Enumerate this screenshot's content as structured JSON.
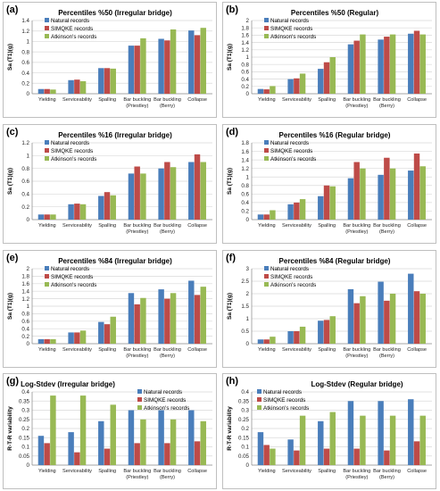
{
  "colors": {
    "natural": "#4a7ebb",
    "simqke": "#be4b48",
    "atkinson": "#98b954",
    "grid": "#d9d9d9",
    "axis": "#868686"
  },
  "chart_data": [
    {
      "panel_label": "(a)",
      "type": "bar",
      "title": "Percentiles  %50  (Irregular bridge)",
      "ylabel": "Sa (T1)(g)",
      "xlabel": "",
      "ylim": [
        0,
        1.4
      ],
      "yticks": [
        "0",
        "0.2",
        "0.4",
        "0.6",
        "0.8",
        "1",
        "1.2",
        "1.4"
      ],
      "legend_position": "top-left",
      "categories": [
        "Yielding",
        "Serviceability",
        "Spalling",
        "Bar buckling\n(Priestley)",
        "Bar buckling\n(Berry)",
        "Collapse"
      ],
      "series": [
        {
          "name": "Natural records",
          "values": [
            0.09,
            0.26,
            0.49,
            0.92,
            1.05,
            1.21
          ]
        },
        {
          "name": "SIMQKE records",
          "values": [
            0.09,
            0.27,
            0.49,
            0.92,
            1.02,
            1.12
          ]
        },
        {
          "name": "Atkinson's records",
          "values": [
            0.08,
            0.24,
            0.48,
            1.06,
            1.23,
            1.26
          ]
        }
      ]
    },
    {
      "panel_label": "(b)",
      "type": "bar",
      "title": "Percentiles  %50  (Regular)",
      "ylabel": "Sa (T1)(g)",
      "xlabel": "",
      "ylim": [
        0,
        2
      ],
      "yticks": [
        "0",
        "0.2",
        "0.4",
        "0.6",
        "0.8",
        "1",
        "1.2",
        "1.4",
        "1.6",
        "1.8",
        "2"
      ],
      "legend_position": "top-left",
      "categories": [
        "Yielding",
        "Serviceability",
        "Spalling",
        "Bar buckling\n(Priestley)",
        "Bar buckling\n(Berry)",
        "Collapse"
      ],
      "series": [
        {
          "name": "Natural records",
          "values": [
            0.13,
            0.4,
            0.68,
            1.35,
            1.48,
            1.64
          ]
        },
        {
          "name": "SIMQKE records",
          "values": [
            0.12,
            0.42,
            0.86,
            1.45,
            1.56,
            1.72
          ]
        },
        {
          "name": "Atkinson's records",
          "values": [
            0.21,
            0.55,
            1.0,
            1.62,
            1.62,
            1.62
          ]
        }
      ]
    },
    {
      "panel_label": "(c)",
      "type": "bar",
      "title": "Percentiles  %16  (Irregular bridge)",
      "ylabel": "Sa (T1)(g)",
      "xlabel": "",
      "ylim": [
        0,
        1.2
      ],
      "yticks": [
        "0",
        "0.2",
        "0.4",
        "0.6",
        "0.8",
        "1",
        "1.2"
      ],
      "legend_position": "top-left",
      "categories": [
        "Yielding",
        "Serviceability",
        "Spalling",
        "Bar buckling\n(Priestley)",
        "Bar buckling\n(Berry)",
        "Collapse"
      ],
      "series": [
        {
          "name": "Natural records",
          "values": [
            0.08,
            0.24,
            0.37,
            0.72,
            0.8,
            0.9
          ]
        },
        {
          "name": "SIMQKE records",
          "values": [
            0.08,
            0.25,
            0.43,
            0.83,
            0.9,
            1.02
          ]
        },
        {
          "name": "Atkinson's records",
          "values": [
            0.08,
            0.24,
            0.38,
            0.72,
            0.82,
            0.9
          ]
        }
      ]
    },
    {
      "panel_label": "(d)",
      "type": "bar",
      "title": "Percentiles  %16  (Regular bridge)",
      "ylabel": "Sa (T1)(g)",
      "xlabel": "",
      "ylim": [
        0,
        1.8
      ],
      "yticks": [
        "0",
        "0.2",
        "0.4",
        "0.6",
        "0.8",
        "1",
        "1.2",
        "1.4",
        "1.6",
        "1.8"
      ],
      "legend_position": "top-left",
      "categories": [
        "Yielding",
        "Serviceability",
        "Spalling",
        "Bar buckling\n(Priestley)",
        "Bar buckling\n(Berry)",
        "Collapse"
      ],
      "series": [
        {
          "name": "Natural records",
          "values": [
            0.12,
            0.36,
            0.55,
            0.97,
            1.05,
            1.15
          ]
        },
        {
          "name": "SIMQKE records",
          "values": [
            0.12,
            0.4,
            0.8,
            1.35,
            1.45,
            1.55
          ]
        },
        {
          "name": "Atkinson's records",
          "values": [
            0.22,
            0.48,
            0.78,
            1.2,
            1.2,
            1.25
          ]
        }
      ]
    },
    {
      "panel_label": "(e)",
      "type": "bar",
      "title": "Percentiles  %84  (Irregular bridge)",
      "ylabel": "Sa (T1)(g)",
      "xlabel": "",
      "ylim": [
        0,
        2
      ],
      "yticks": [
        "0",
        "0.2",
        "0.4",
        "0.6",
        "0.8",
        "1",
        "1.2",
        "1.4",
        "1.6",
        "1.8",
        "2"
      ],
      "legend_position": "top-left",
      "categories": [
        "Yielding",
        "Serviceability",
        "Spalling",
        "Bar buckling\n(Priestley)",
        "Bar buckling\n(Berry)",
        "Collapse"
      ],
      "series": [
        {
          "name": "Natural records",
          "values": [
            0.12,
            0.3,
            0.58,
            1.35,
            1.45,
            1.68
          ]
        },
        {
          "name": "SIMQKE records",
          "values": [
            0.12,
            0.3,
            0.52,
            1.05,
            1.2,
            1.3
          ]
        },
        {
          "name": "Atkinson's records",
          "values": [
            0.12,
            0.35,
            0.72,
            1.22,
            1.35,
            1.52
          ]
        }
      ]
    },
    {
      "panel_label": "(f)",
      "type": "bar",
      "title": "Percentiles  %84  (Regular bridge)",
      "ylabel": "Sa (T1)(g)",
      "xlabel": "",
      "ylim": [
        0,
        3
      ],
      "yticks": [
        "0",
        "0.5",
        "1",
        "1.5",
        "2",
        "2.5",
        "3"
      ],
      "legend_position": "top-left",
      "categories": [
        "Yielding",
        "Serviceability",
        "Spalling",
        "Bar buckling\n(Priestley)",
        "Bar buckling\n(Berry)",
        "Collapse"
      ],
      "series": [
        {
          "name": "Natural records",
          "values": [
            0.17,
            0.5,
            0.92,
            2.18,
            2.48,
            2.8
          ]
        },
        {
          "name": "SIMQKE records",
          "values": [
            0.17,
            0.5,
            0.95,
            1.62,
            1.72,
            2.1
          ]
        },
        {
          "name": "Atkinson's records",
          "values": [
            0.28,
            0.68,
            1.1,
            1.9,
            2.0,
            2.0
          ]
        }
      ]
    },
    {
      "panel_label": "(g)",
      "type": "bar",
      "title": "Log-Stdev  (Irregular bridge)",
      "ylabel": "R-T-R variability",
      "xlabel": "",
      "ylim": [
        0,
        0.4
      ],
      "yticks": [
        "0",
        "0.05",
        "0.1",
        "0.15",
        "0.2",
        "0.25",
        "0.3",
        "0.35",
        "0.4"
      ],
      "legend_position": "top-right",
      "categories": [
        "Yielding",
        "Serviceability",
        "Spalling",
        "Bar buckling\n(Priestley)",
        "Bar buckling\n(Berry)",
        "Collapse"
      ],
      "series": [
        {
          "name": "Natural records",
          "values": [
            0.16,
            0.18,
            0.24,
            0.3,
            0.3,
            0.3
          ]
        },
        {
          "name": "SIMQKE records",
          "values": [
            0.12,
            0.07,
            0.09,
            0.12,
            0.12,
            0.13
          ]
        },
        {
          "name": "Atkinson's records",
          "values": [
            0.38,
            0.38,
            0.33,
            0.25,
            0.25,
            0.24
          ]
        }
      ]
    },
    {
      "panel_label": "(h)",
      "type": "bar",
      "title": "Log-Stdev  (Regular bridge)",
      "ylabel": "R-T-R variability",
      "xlabel": "",
      "ylim": [
        0,
        0.4
      ],
      "yticks": [
        "0",
        "0.05",
        "0.1",
        "0.15",
        "0.2",
        "0.25",
        "0.3",
        "0.35",
        "0.4"
      ],
      "legend_position": "top-left",
      "categories": [
        "Yielding",
        "Serviceability",
        "Spalling",
        "Bar buckling\n(Priestley)",
        "Bar buckling\n(Berry)",
        "Collapse"
      ],
      "series": [
        {
          "name": "Natural records",
          "values": [
            0.18,
            0.14,
            0.24,
            0.35,
            0.35,
            0.36
          ]
        },
        {
          "name": "SIMQKE records",
          "values": [
            0.11,
            0.08,
            0.09,
            0.09,
            0.08,
            0.13
          ]
        },
        {
          "name": "Atkinson's records",
          "values": [
            0.09,
            0.27,
            0.29,
            0.27,
            0.27,
            0.27
          ]
        }
      ]
    }
  ]
}
